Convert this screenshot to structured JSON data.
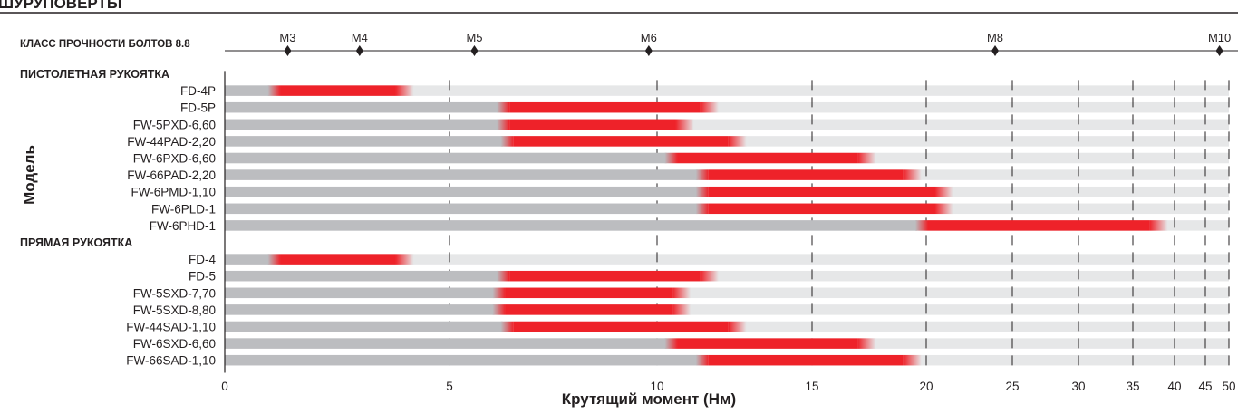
{
  "header": {
    "title": "ШУРУПОВЕРТЫ",
    "bolt_class_label": "КЛАСС ПРОЧНОСТИ БОЛТОВ 8.8"
  },
  "colors": {
    "red": "#ee2229",
    "gray": "#bcbdc0",
    "track": "#e6e7e8",
    "text": "#231f20"
  },
  "chart_data": {
    "type": "bar",
    "subtype": "floating-range",
    "xlabel": "Крутящий момент (Нм)",
    "ylabel": "Модель",
    "x_scale": "piecewise",
    "xlim": [
      0,
      50
    ],
    "x_ticks": [
      0,
      5,
      10,
      15,
      20,
      25,
      30,
      35,
      40,
      45,
      50
    ],
    "bolt_sizes": [
      {
        "label": "M3",
        "value": 1.4
      },
      {
        "label": "M4",
        "value": 3.0
      },
      {
        "label": "M5",
        "value": 5.6
      },
      {
        "label": "M6",
        "value": 9.8
      },
      {
        "label": "M8",
        "value": 24
      },
      {
        "label": "M10",
        "value": 48
      }
    ],
    "groups": [
      {
        "label": "ПИСТОЛЕТНАЯ РУКОЯТКА",
        "rows": [
          {
            "model": "FD-4P",
            "min": 1.2,
            "max": 3.8
          },
          {
            "model": "FD-5P",
            "min": 6.4,
            "max": 11.4
          },
          {
            "model": "FW-5PXD-6,60",
            "min": 6.4,
            "max": 10.6
          },
          {
            "model": "FW-44PAD-2,20",
            "min": 6.5,
            "max": 12.3
          },
          {
            "model": "FW-6PXD-6,60",
            "min": 10.6,
            "max": 17
          },
          {
            "model": "FW-66PAD-2,20",
            "min": 11.6,
            "max": 19
          },
          {
            "model": "FW-6PMD-1,10",
            "min": 11.6,
            "max": 20.5
          },
          {
            "model": "FW-6PLD-1",
            "min": 11.6,
            "max": 20.5
          },
          {
            "model": "FW-6PHD-1",
            "min": 20,
            "max": 37
          }
        ]
      },
      {
        "label": "ПРЯМАЯ РУКОЯТКА",
        "rows": [
          {
            "model": "FD-4",
            "min": 1.2,
            "max": 3.8
          },
          {
            "model": "FD-5",
            "min": 6.4,
            "max": 11.4
          },
          {
            "model": "FW-5SXD-7,70",
            "min": 6.3,
            "max": 10.5
          },
          {
            "model": "FW-5SXD-8,80",
            "min": 6.3,
            "max": 10.5
          },
          {
            "model": "FW-44SAD-1,10",
            "min": 6.5,
            "max": 12.3
          },
          {
            "model": "FW-6SXD-6,60",
            "min": 10.6,
            "max": 17
          },
          {
            "model": "FW-66SAD-1,10",
            "min": 11.6,
            "max": 19
          }
        ]
      }
    ]
  }
}
